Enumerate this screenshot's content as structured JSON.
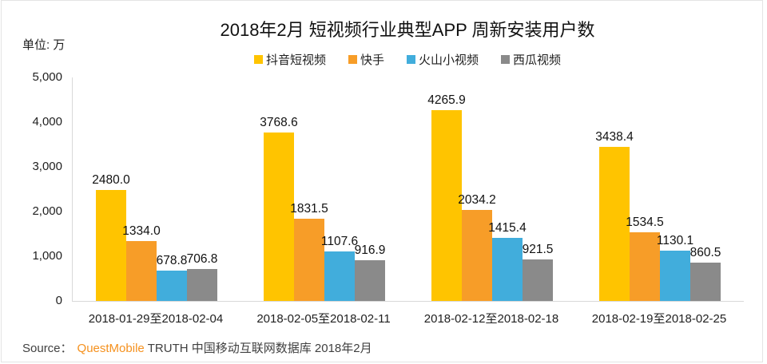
{
  "page": {
    "title": "2018年2月 短视频行业典型APP 周新安装用户数",
    "unit_label": "单位: 万",
    "source_prefix": "Source：",
    "source_brand": "QuestMobile",
    "source_suffix": "TRUTH 中国移动互联网数据库 2018年2月"
  },
  "colors": {
    "douyin_yellow": "#FFC400",
    "kuaishou_orange": "#F79D28",
    "huoshan_blue": "#41ADDC",
    "xigua_gray": "#8A8A8A",
    "axis_line": "#D9D9D9",
    "brand_orange": "#F5911E"
  },
  "chart_data": {
    "type": "bar",
    "title": "2018年2月 短视频行业典型APP 周新安装用户数",
    "unit": "万",
    "categories": [
      "2018-01-29至2018-02-04",
      "2018-02-05至2018-02-11",
      "2018-02-12至2018-02-18",
      "2018-02-19至2018-02-25"
    ],
    "series": [
      {
        "name": "抖音短视频",
        "color": "#FFC400",
        "values": [
          2480.0,
          3768.6,
          4265.9,
          3438.4
        ]
      },
      {
        "name": "快手",
        "color": "#F79D28",
        "values": [
          1334.0,
          1831.5,
          2034.2,
          1534.5
        ]
      },
      {
        "name": "火山小视频",
        "color": "#41ADDC",
        "values": [
          678.8,
          1107.6,
          1415.4,
          1130.1
        ]
      },
      {
        "name": "西瓜视频",
        "color": "#8A8A8A",
        "values": [
          706.8,
          916.9,
          921.5,
          860.5
        ]
      }
    ],
    "ylim": [
      0,
      5000
    ],
    "ytick_labels": [
      "5,000",
      "4,000",
      "3,000",
      "2,000",
      "1,000",
      "0"
    ],
    "grid": false,
    "legend_position": "top",
    "value_label_decimals": 1
  }
}
